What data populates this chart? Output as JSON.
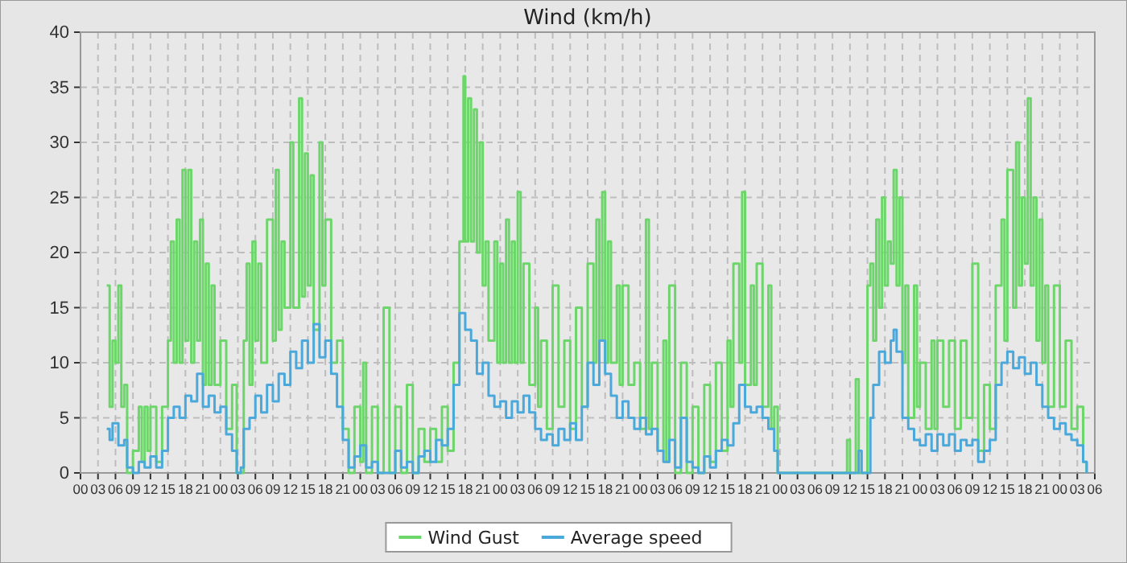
{
  "chart_data": {
    "type": "step",
    "title": "Wind (km/h)",
    "grid": true,
    "legend": "bottom",
    "marker": "none",
    "line_style": "solid",
    "xlim": [
      0,
      174
    ],
    "ylim": [
      0,
      40
    ],
    "xticks": [
      {
        "value": 0,
        "label": "00"
      },
      {
        "value": 3,
        "label": "03"
      },
      {
        "value": 6,
        "label": "06"
      },
      {
        "value": 9,
        "label": "09"
      },
      {
        "value": 12,
        "label": "12"
      },
      {
        "value": 15,
        "label": "15"
      },
      {
        "value": 18,
        "label": "18"
      },
      {
        "value": 21,
        "label": "21"
      },
      {
        "value": 24,
        "label": "00"
      },
      {
        "value": 27,
        "label": "03"
      },
      {
        "value": 30,
        "label": "06"
      },
      {
        "value": 33,
        "label": "09"
      },
      {
        "value": 36,
        "label": "12"
      },
      {
        "value": 39,
        "label": "15"
      },
      {
        "value": 42,
        "label": "18"
      },
      {
        "value": 45,
        "label": "21"
      },
      {
        "value": 48,
        "label": "00"
      },
      {
        "value": 51,
        "label": "03"
      },
      {
        "value": 54,
        "label": "06"
      },
      {
        "value": 57,
        "label": "09"
      },
      {
        "value": 60,
        "label": "12"
      },
      {
        "value": 63,
        "label": "15"
      },
      {
        "value": 66,
        "label": "18"
      },
      {
        "value": 69,
        "label": "21"
      },
      {
        "value": 72,
        "label": "00"
      },
      {
        "value": 75,
        "label": "03"
      },
      {
        "value": 78,
        "label": "06"
      },
      {
        "value": 81,
        "label": "09"
      },
      {
        "value": 84,
        "label": "12"
      },
      {
        "value": 87,
        "label": "15"
      },
      {
        "value": 90,
        "label": "18"
      },
      {
        "value": 93,
        "label": "21"
      },
      {
        "value": 96,
        "label": "00"
      },
      {
        "value": 99,
        "label": "03"
      },
      {
        "value": 102,
        "label": "06"
      },
      {
        "value": 105,
        "label": "09"
      },
      {
        "value": 108,
        "label": "12"
      },
      {
        "value": 111,
        "label": "15"
      },
      {
        "value": 114,
        "label": "18"
      },
      {
        "value": 117,
        "label": "21"
      },
      {
        "value": 120,
        "label": "00"
      },
      {
        "value": 123,
        "label": "03"
      },
      {
        "value": 126,
        "label": "06"
      },
      {
        "value": 129,
        "label": "09"
      },
      {
        "value": 132,
        "label": "12"
      },
      {
        "value": 135,
        "label": "15"
      },
      {
        "value": 138,
        "label": "18"
      },
      {
        "value": 141,
        "label": "21"
      },
      {
        "value": 144,
        "label": "00"
      },
      {
        "value": 147,
        "label": "03"
      },
      {
        "value": 150,
        "label": "06"
      },
      {
        "value": 153,
        "label": "09"
      },
      {
        "value": 156,
        "label": "12"
      },
      {
        "value": 159,
        "label": "15"
      },
      {
        "value": 162,
        "label": "18"
      },
      {
        "value": 165,
        "label": "21"
      },
      {
        "value": 168,
        "label": "00"
      },
      {
        "value": 171,
        "label": "03"
      },
      {
        "value": 174,
        "label": "06"
      }
    ],
    "yticks": [
      0,
      5,
      10,
      15,
      20,
      25,
      30,
      35,
      40
    ],
    "series": [
      {
        "name": "Wind Gust",
        "color": "#6dd66b",
        "x": [
          4.5,
          5,
          5.5,
          6,
          6.5,
          7,
          7.5,
          8,
          9,
          10,
          10.5,
          11,
          11.5,
          12,
          13,
          14,
          15,
          15.5,
          16,
          16.5,
          17,
          17.5,
          18,
          18.5,
          19,
          19.5,
          20,
          20.5,
          21,
          21.5,
          22,
          22.5,
          23,
          24,
          25,
          26,
          26.8,
          28,
          28.5,
          29,
          29.5,
          30,
          30.5,
          31,
          32,
          33,
          33.5,
          34,
          34.5,
          35,
          36,
          36.5,
          37.5,
          38,
          38.5,
          39,
          39.5,
          40,
          41,
          41.5,
          42,
          43,
          44,
          45,
          46,
          47,
          48,
          48.5,
          49,
          50,
          51,
          52,
          53,
          54,
          55,
          56,
          57,
          58,
          59,
          60,
          61,
          62,
          63,
          64,
          65,
          65.7,
          66,
          66.5,
          67,
          67.5,
          68,
          68.5,
          69,
          69.5,
          70,
          71,
          71.5,
          72,
          72.5,
          73,
          73.5,
          74,
          74.5,
          75,
          75.5,
          76,
          77,
          78,
          78.5,
          79,
          80,
          81,
          82,
          83,
          84,
          85,
          86,
          87,
          88,
          88.5,
          89,
          89.5,
          90,
          90.5,
          91,
          92,
          92.5,
          93,
          94,
          95,
          96,
          97,
          97.5,
          98,
          99,
          100,
          100.5,
          101,
          102,
          103,
          104,
          105,
          106,
          107,
          108,
          109,
          110,
          111,
          111.5,
          112,
          113,
          113.5,
          114,
          115,
          115.5,
          116,
          117,
          118,
          118.5,
          119,
          119.6,
          131,
          131.5,
          132,
          133,
          133.5,
          134.5,
          135,
          135.5,
          136,
          136.5,
          137,
          137.5,
          138,
          138.5,
          139,
          139.5,
          140,
          140.5,
          141,
          141.5,
          142,
          143,
          143.5,
          144,
          145,
          146,
          146.5,
          147,
          148,
          149,
          150,
          151,
          152,
          153,
          154,
          155,
          156,
          157,
          158,
          158.5,
          159,
          160,
          160.5,
          161,
          161.5,
          162,
          162.5,
          163,
          163.5,
          164,
          164.5,
          165,
          165.5,
          166,
          167,
          168,
          169,
          170,
          171,
          172,
          172.6
        ],
        "values": [
          17,
          6,
          12,
          10,
          17,
          6,
          8,
          0,
          2,
          6,
          1,
          6,
          2,
          6,
          1,
          6,
          12,
          21,
          10,
          23,
          10,
          27.5,
          12,
          27.5,
          10,
          21,
          12,
          23,
          8,
          19,
          8,
          17,
          8,
          12,
          4,
          8,
          0,
          12,
          19,
          8,
          21,
          12,
          19,
          10,
          23,
          12,
          27.5,
          13,
          21,
          15,
          30,
          15,
          34,
          16,
          29,
          17,
          27,
          13,
          30,
          17,
          23,
          10,
          12,
          4,
          0,
          6,
          1,
          10,
          0,
          6,
          0,
          15,
          0,
          6,
          0,
          8,
          0,
          4,
          1,
          4,
          1,
          6,
          2,
          10,
          21,
          36,
          21,
          34,
          21,
          33,
          20,
          30,
          17,
          21,
          12,
          21,
          10,
          19,
          10,
          23,
          10,
          21,
          10,
          25.5,
          10,
          19,
          8,
          15,
          6,
          12,
          4,
          17,
          6,
          12,
          4,
          15,
          6,
          19,
          10,
          23,
          12,
          25.5,
          10,
          21,
          10,
          17,
          8,
          17,
          8,
          10,
          4,
          23,
          4,
          10,
          2,
          12,
          1,
          17,
          0,
          10,
          0,
          6,
          0,
          8,
          1,
          10,
          2,
          12,
          6,
          19,
          10,
          25.5,
          8,
          17,
          8,
          19,
          6,
          17,
          4,
          6,
          0,
          0,
          3,
          0,
          8.5,
          0,
          0,
          17,
          19,
          12,
          23,
          15,
          25,
          17,
          21,
          19,
          27.5,
          17,
          25,
          10,
          17,
          5,
          17,
          6,
          10,
          4,
          12,
          4,
          12,
          6,
          12,
          4,
          12,
          5,
          19,
          2,
          8,
          4,
          17,
          23,
          12,
          27.5,
          15,
          30,
          17,
          25,
          19,
          34,
          17,
          25,
          12,
          23,
          10,
          17,
          6,
          17,
          6,
          12,
          4,
          6,
          1,
          0
        ]
      },
      {
        "name": "Average speed",
        "color": "#4ba8da",
        "x": [
          4.5,
          5,
          5.5,
          6.5,
          7.5,
          8,
          9,
          10,
          11,
          12,
          13,
          14,
          15,
          16,
          17,
          18,
          19,
          20,
          21,
          22,
          23,
          24,
          25,
          26,
          26.8,
          27.5,
          28,
          29,
          30,
          31,
          32,
          33,
          34,
          35,
          36,
          37,
          38,
          39,
          40,
          41,
          42,
          43,
          44,
          45,
          46,
          47,
          48,
          49,
          50,
          51,
          53,
          54,
          55,
          56,
          57,
          58,
          59,
          60,
          61,
          62,
          63,
          64,
          65,
          66,
          67,
          68,
          69,
          70,
          71,
          72,
          73,
          74,
          75,
          76,
          77,
          78,
          79,
          80,
          81,
          82,
          83,
          84,
          85,
          86,
          87,
          88,
          89,
          90,
          91,
          92,
          93,
          94,
          95,
          96,
          97,
          98,
          99,
          100,
          101,
          102,
          103,
          104,
          105,
          106,
          107,
          108,
          109,
          110,
          111,
          112,
          113,
          114,
          115,
          116,
          117,
          118,
          119,
          119.6,
          133,
          133.5,
          134,
          135,
          135.5,
          136,
          137,
          138,
          139,
          139.5,
          140,
          141,
          142,
          143,
          144,
          145,
          146,
          147,
          148,
          149,
          150,
          151,
          152,
          153,
          154,
          155,
          156,
          157,
          158,
          159,
          160,
          161,
          162,
          163,
          164,
          165,
          166,
          167,
          168,
          169,
          170,
          171,
          172,
          172.6
        ],
        "values": [
          4,
          3,
          4.5,
          2.5,
          3,
          0.5,
          0,
          1,
          0.5,
          1.5,
          0.5,
          2,
          5,
          6,
          5,
          7,
          6.5,
          9,
          6,
          7,
          5.5,
          6,
          3.5,
          2,
          0,
          0.5,
          4,
          5,
          7,
          5.5,
          8,
          6.5,
          9,
          8,
          11,
          9.5,
          12,
          10,
          13.5,
          10.5,
          12,
          9,
          6,
          3,
          0.5,
          1.5,
          2.5,
          0.5,
          1,
          0,
          0,
          2,
          0.5,
          1,
          0,
          1.5,
          2,
          1,
          3,
          2.5,
          4,
          8,
          14.5,
          13,
          12,
          9,
          10,
          7,
          6,
          6.5,
          5,
          6.5,
          5.5,
          7,
          5.5,
          4,
          3,
          3.5,
          2.5,
          4,
          3,
          4.5,
          3,
          6,
          10,
          8,
          12,
          9,
          7,
          5,
          6.5,
          5,
          4,
          5,
          3.5,
          4,
          2,
          1,
          3,
          0.5,
          5,
          1,
          0.5,
          0,
          1.5,
          0.5,
          2,
          3,
          2.5,
          4.5,
          8,
          6,
          5.5,
          6,
          5,
          4,
          2,
          0,
          0,
          2,
          0,
          0,
          5,
          8,
          11,
          10,
          12,
          13,
          11,
          5,
          4,
          3,
          2.5,
          3.5,
          2,
          3.5,
          2.5,
          3.5,
          2,
          3,
          2.5,
          3,
          1,
          2,
          3,
          8,
          10,
          11,
          9.5,
          10.5,
          9,
          10,
          8,
          6,
          5,
          4,
          4.5,
          3.5,
          3,
          2.5,
          1,
          0
        ]
      }
    ]
  }
}
